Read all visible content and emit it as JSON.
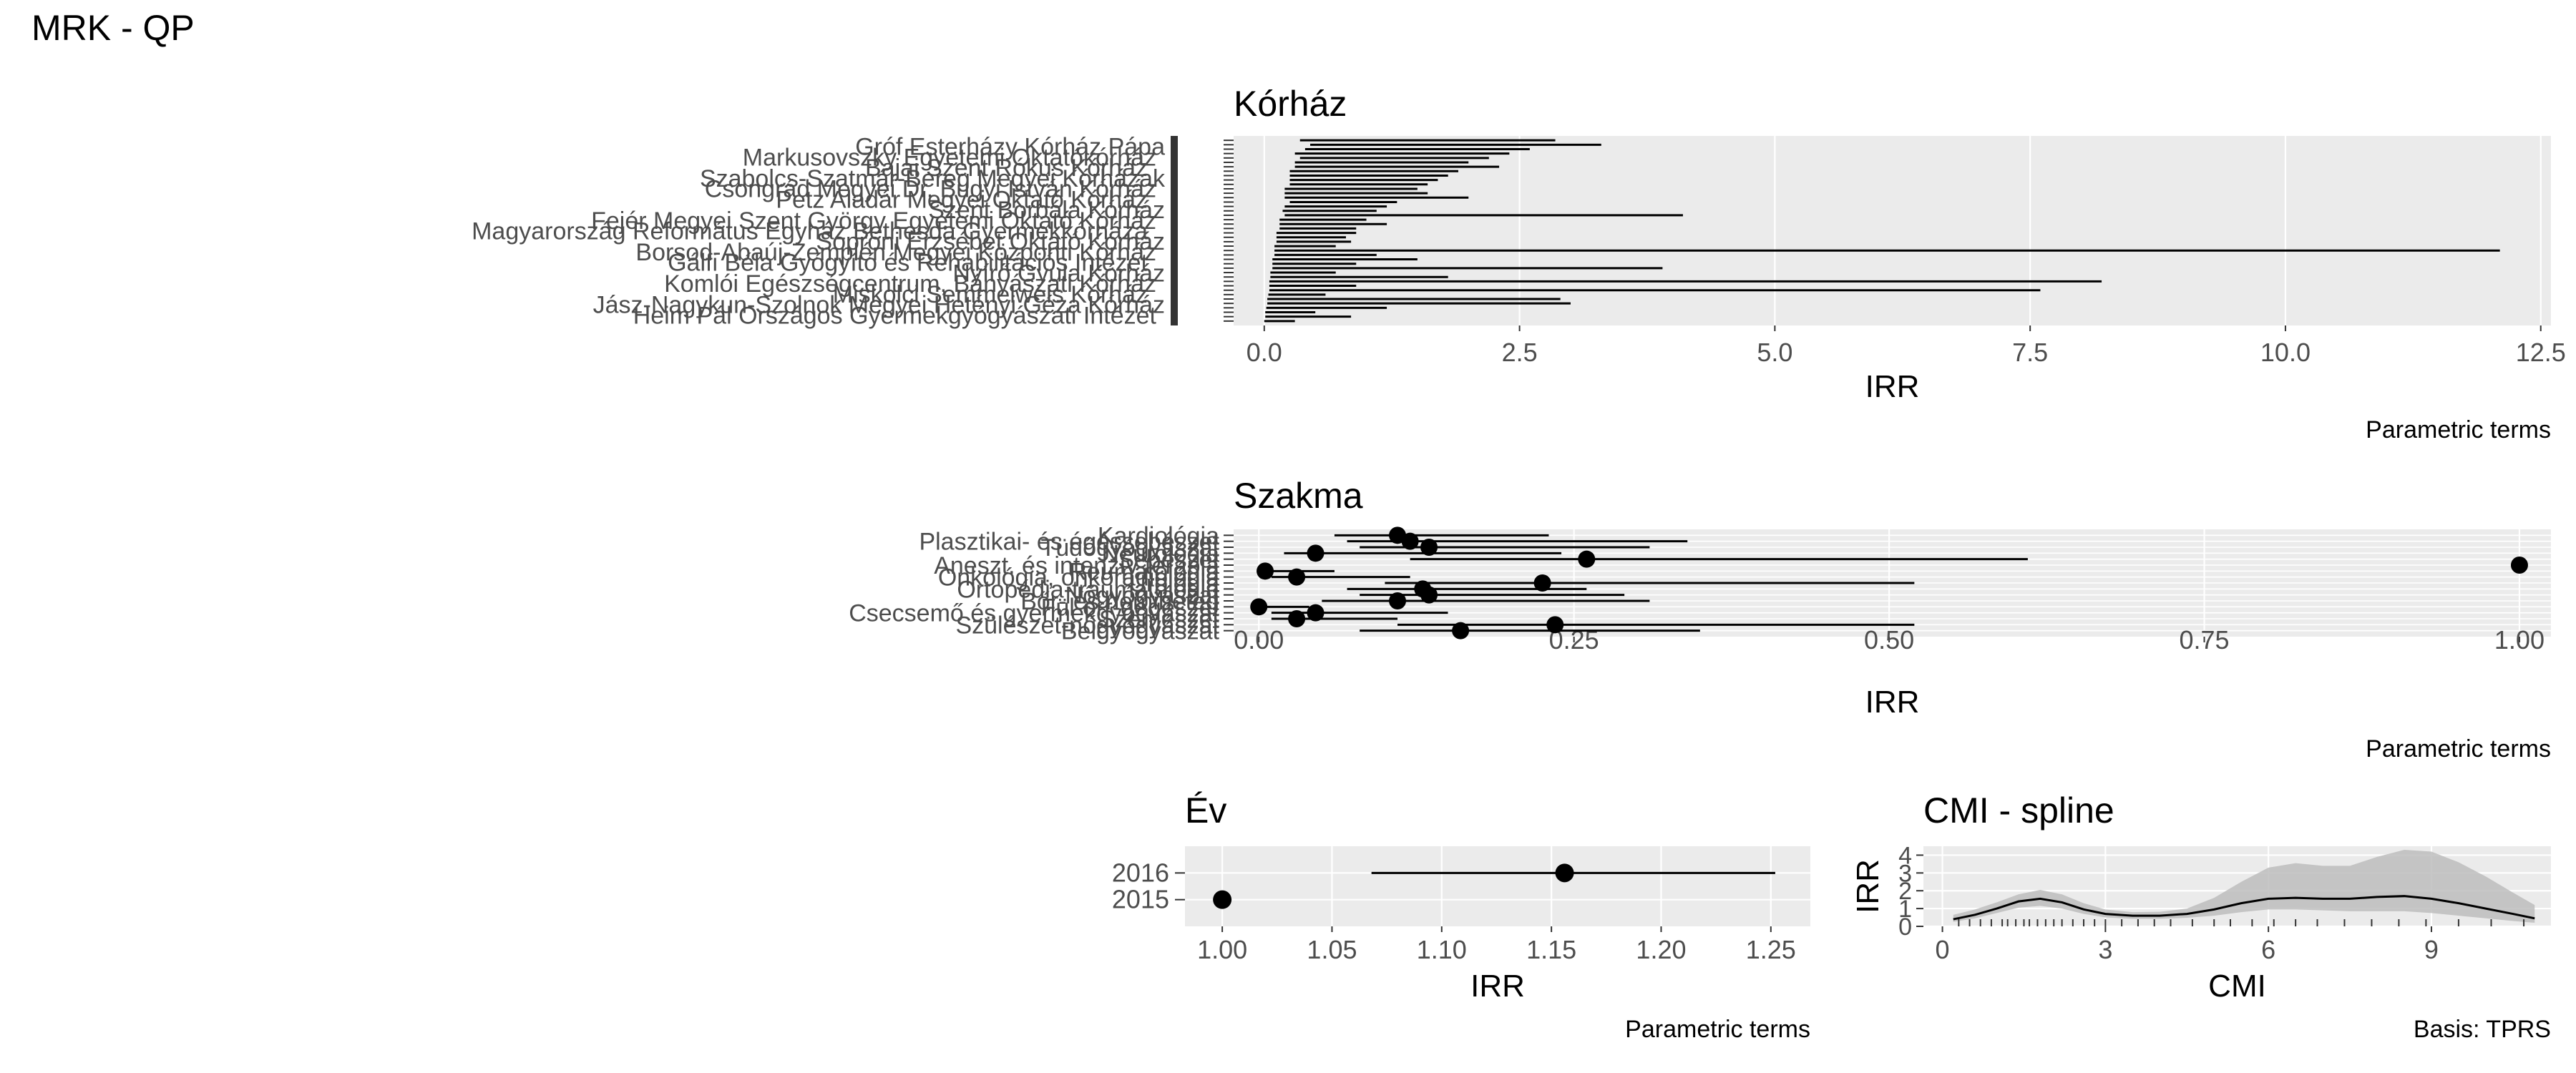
{
  "title": "MRK  -  QP",
  "colors": {
    "panel_bg": "#EBEBEB",
    "grid": "#FFFFFF",
    "ink": "#000000",
    "axis_text": "#4D4D4D",
    "ribbon": "#BDBDBD"
  },
  "chart_data": [
    {
      "type": "forest",
      "panel": "Kórház",
      "title": "Kórház",
      "xlabel": "IRR",
      "caption": "Parametric terms",
      "xlim": [
        -0.3,
        12.6
      ],
      "xticks": [
        0.0,
        2.5,
        5.0,
        7.5,
        10.0,
        12.5
      ],
      "xtick_labels": [
        "0.0",
        "2.5",
        "5.0",
        "7.5",
        "10.0",
        "12.5"
      ],
      "y_labels": [
        "Gróf Esterházy Kórház Pápa",
        "Markusovszky Egyetemi Oktatókórház",
        "Bajai Szent Rókus Kórház",
        "Szabolcs-Szatmár-Bereg Megyei Kórházak",
        "Csongrád Megyei Dr. Bugyi István Kórház",
        "Petz Aladár Megyei Oktató Kórház",
        "Szent Borbála Kórház",
        "Fejér Megyei Szent György Egyetemi Oktató Kórház",
        "Magyarország Református Egyház Bethesda Gyermekkórháza",
        "Soproni Erzsébet Oktató Kórház",
        "Borsod-Abaúj-Zemplén Megyei Központi Kórház",
        "Gálfi Béla Gyógyító és Rehabilitációs Intézet",
        "Nyírő Gyula Kórház",
        "Komlói Egészségcentrum, Bányászati Kórház",
        "Miskolci Semmelweis Kórház",
        "Jász-Nagykun-Szolnok Megyei Hetényi Géza Kórház",
        "Heim Pál Országos Gyermekgyógyászati Intézet"
      ],
      "n_hospitals": 42,
      "estimates": [
        {
          "lo": 0.35,
          "hi": 2.85
        },
        {
          "lo": 0.45,
          "hi": 3.3
        },
        {
          "lo": 0.4,
          "hi": 2.6
        },
        {
          "lo": 0.3,
          "hi": 2.4
        },
        {
          "lo": 0.35,
          "hi": 2.2
        },
        {
          "lo": 0.3,
          "hi": 2.0
        },
        {
          "lo": 0.3,
          "hi": 2.3
        },
        {
          "lo": 0.25,
          "hi": 1.9
        },
        {
          "lo": 0.25,
          "hi": 1.8
        },
        {
          "lo": 0.25,
          "hi": 1.7
        },
        {
          "lo": 0.25,
          "hi": 1.6
        },
        {
          "lo": 0.2,
          "hi": 1.5
        },
        {
          "lo": 0.2,
          "hi": 1.6
        },
        {
          "lo": 0.2,
          "hi": 2.0
        },
        {
          "lo": 0.25,
          "hi": 1.3
        },
        {
          "lo": 0.2,
          "hi": 1.2
        },
        {
          "lo": 0.18,
          "hi": 1.1
        },
        {
          "lo": 0.2,
          "hi": 4.1
        },
        {
          "lo": 0.15,
          "hi": 1.0
        },
        {
          "lo": 0.15,
          "hi": 1.2
        },
        {
          "lo": 0.15,
          "hi": 0.9
        },
        {
          "lo": 0.12,
          "hi": 0.9
        },
        {
          "lo": 0.12,
          "hi": 0.8
        },
        {
          "lo": 0.12,
          "hi": 0.85
        },
        {
          "lo": 0.1,
          "hi": 0.7
        },
        {
          "lo": 0.1,
          "hi": 12.1
        },
        {
          "lo": 0.1,
          "hi": 1.1
        },
        {
          "lo": 0.08,
          "hi": 1.5
        },
        {
          "lo": 0.08,
          "hi": 0.9
        },
        {
          "lo": 0.08,
          "hi": 3.9
        },
        {
          "lo": 0.06,
          "hi": 0.7
        },
        {
          "lo": 0.06,
          "hi": 1.8
        },
        {
          "lo": 0.05,
          "hi": 8.2
        },
        {
          "lo": 0.05,
          "hi": 0.9
        },
        {
          "lo": 0.05,
          "hi": 7.6
        },
        {
          "lo": 0.04,
          "hi": 0.6
        },
        {
          "lo": 0.03,
          "hi": 2.9
        },
        {
          "lo": 0.03,
          "hi": 3.0
        },
        {
          "lo": 0.02,
          "hi": 1.2
        },
        {
          "lo": 0.01,
          "hi": 0.5
        },
        {
          "lo": 0.01,
          "hi": 0.85
        },
        {
          "lo": 0.0,
          "hi": 0.3
        }
      ]
    },
    {
      "type": "forest",
      "panel": "Szakma",
      "title": "Szakma",
      "xlabel": "IRR",
      "caption": "Parametric terms",
      "xlim": [
        -0.02,
        1.025
      ],
      "xticks": [
        0.0,
        0.25,
        0.5,
        0.75,
        1.0
      ],
      "xtick_labels": [
        "0.00",
        "0.25",
        "0.50",
        "0.75",
        "1.00"
      ],
      "categories": [
        "Kardiológia",
        "Plasztikai- és égéssebészet",
        "Tüdőgyógyászat",
        "Neurológia",
        "Sebészet",
        "Aneszt. és intenzív terápia",
        "Reumatológia",
        "Onkológia, onkoradiológia",
        "Urológia",
        "Ortopédia-traumatológia",
        "Nőgyógyászat",
        "Bőr- és nemibeteg",
        "Fül-orr-gégészet",
        "Csecsemő és gyermekgyógyászat",
        "Szemészet",
        "Szülészet-nőgyógyászat",
        "Belgyógyászat"
      ],
      "estimates": [
        {
          "est": 0.11,
          "lo": 0.06,
          "hi": 0.23
        },
        {
          "est": 0.12,
          "lo": 0.07,
          "hi": 0.34
        },
        {
          "est": 0.135,
          "lo": 0.08,
          "hi": 0.31
        },
        {
          "est": 0.045,
          "lo": 0.02,
          "hi": 0.24
        },
        {
          "est": 0.26,
          "lo": 0.12,
          "hi": 0.61
        },
        {
          "est": 1.0,
          "lo": 1.0,
          "hi": 1.0
        },
        {
          "est": 0.005,
          "lo": 0.0,
          "hi": 0.06
        },
        {
          "est": 0.03,
          "lo": 0.01,
          "hi": 0.12
        },
        {
          "est": 0.225,
          "lo": 0.1,
          "hi": 0.52
        },
        {
          "est": 0.13,
          "lo": 0.07,
          "hi": 0.26
        },
        {
          "est": 0.135,
          "lo": 0.08,
          "hi": 0.29
        },
        {
          "est": 0.11,
          "lo": 0.05,
          "hi": 0.31
        },
        {
          "est": 0.0,
          "lo": 0.0,
          "hi": 0.04
        },
        {
          "est": 0.045,
          "lo": 0.01,
          "hi": 0.15
        },
        {
          "est": 0.03,
          "lo": 0.01,
          "hi": 0.11
        },
        {
          "est": 0.235,
          "lo": 0.11,
          "hi": 0.52
        },
        {
          "est": 0.16,
          "lo": 0.08,
          "hi": 0.35
        }
      ]
    },
    {
      "type": "forest",
      "panel": "Év",
      "title": "Év",
      "xlabel": "IRR",
      "caption": "Parametric terms",
      "xlim": [
        0.983,
        1.268
      ],
      "xticks": [
        1.0,
        1.05,
        1.1,
        1.15,
        1.2,
        1.25
      ],
      "xtick_labels": [
        "1.00",
        "1.05",
        "1.10",
        "1.15",
        "1.20",
        "1.25"
      ],
      "categories": [
        "2016",
        "2015"
      ],
      "estimates": [
        {
          "est": 1.156,
          "lo": 1.068,
          "hi": 1.252
        },
        {
          "est": 1.0,
          "lo": 1.0,
          "hi": 1.0
        }
      ]
    },
    {
      "type": "line",
      "panel": "CMI - spline",
      "title": "CMI - spline",
      "xlabel": "CMI",
      "ylabel": "IRR",
      "caption": "Basis: TPRS",
      "xlim": [
        -0.35,
        11.2
      ],
      "ylim": [
        0,
        4.5
      ],
      "xticks": [
        0,
        3,
        6,
        9
      ],
      "yticks": [
        0,
        1,
        2,
        3,
        4
      ],
      "x": [
        0.2,
        0.6,
        1.0,
        1.4,
        1.8,
        2.2,
        2.6,
        3.0,
        3.5,
        4.0,
        4.5,
        5.0,
        5.5,
        6.0,
        6.5,
        7.0,
        7.5,
        8.0,
        8.5,
        9.0,
        9.5,
        10.0,
        10.5,
        10.9
      ],
      "fit": [
        0.4,
        0.65,
        1.0,
        1.4,
        1.55,
        1.35,
        0.95,
        0.7,
        0.6,
        0.6,
        0.7,
        0.95,
        1.3,
        1.55,
        1.6,
        1.55,
        1.55,
        1.65,
        1.7,
        1.55,
        1.3,
        1.0,
        0.7,
        0.45
      ],
      "lower": [
        0.25,
        0.45,
        0.75,
        1.05,
        1.15,
        1.0,
        0.7,
        0.5,
        0.42,
        0.42,
        0.48,
        0.6,
        0.8,
        0.95,
        0.95,
        0.9,
        0.85,
        0.85,
        0.85,
        0.75,
        0.6,
        0.45,
        0.3,
        0.2
      ],
      "upper": [
        0.65,
        0.95,
        1.35,
        1.8,
        2.05,
        1.8,
        1.3,
        0.95,
        0.8,
        0.82,
        1.0,
        1.6,
        2.5,
        3.3,
        3.55,
        3.4,
        3.4,
        3.9,
        4.3,
        4.2,
        3.6,
        2.8,
        1.9,
        1.2
      ],
      "rug": [
        0.3,
        0.5,
        0.7,
        0.9,
        1.1,
        1.2,
        1.35,
        1.5,
        1.6,
        1.75,
        1.9,
        2.05,
        2.2,
        2.4,
        2.6,
        2.8,
        3.0,
        3.3,
        3.6,
        3.9,
        4.2,
        4.6,
        5.0,
        5.3,
        5.7,
        6.1,
        6.5,
        6.9,
        7.4,
        7.9,
        8.4,
        8.9,
        9.5,
        10.1,
        10.7
      ]
    }
  ]
}
